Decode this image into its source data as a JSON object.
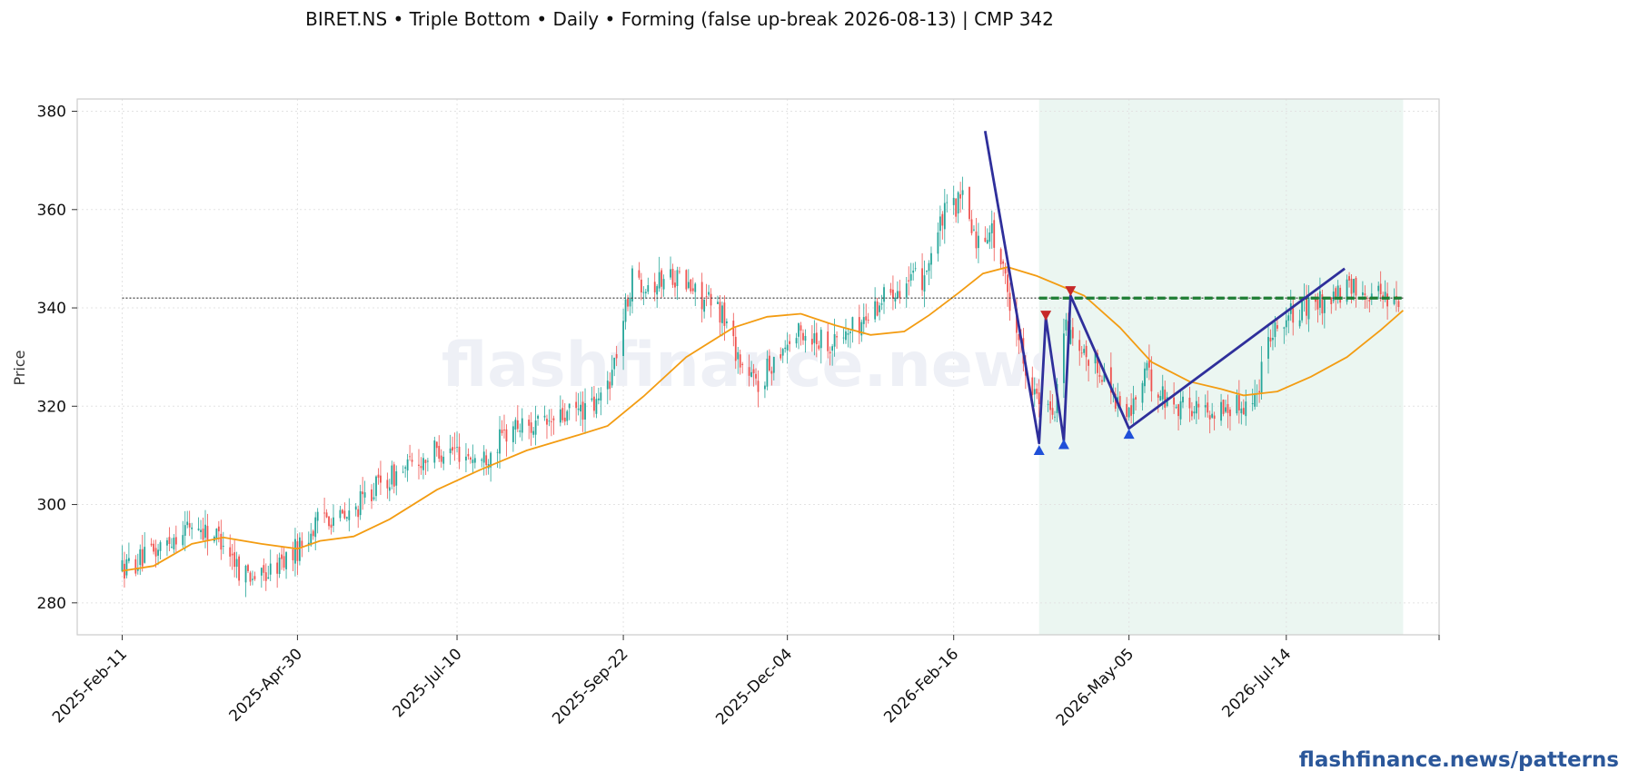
{
  "chart_data": {
    "type": "candlestick",
    "title": "BIRET.NS  •  Triple Bottom  •  Daily  •  Forming  (false up-break 2026-08-13)  |  CMP 342",
    "xlabel": "",
    "ylabel": "Price",
    "watermark": "flashfinance.news",
    "footer": "flashfinance.news/patterns",
    "x_range": [
      "2025-01-22",
      "2026-09-20"
    ],
    "y_range": [
      273.5,
      382.5
    ],
    "grid": true,
    "legend": "none",
    "x_ticks": [
      "2025-Feb-11",
      "2025-Apr-30",
      "2025-Jul-10",
      "2025-Sep-22",
      "2025-Dec-04",
      "2026-Feb-16",
      "2026-May-05",
      "2026-Jul-14"
    ],
    "x_tick_dates": [
      "2025-02-11",
      "2025-04-30",
      "2025-07-10",
      "2025-09-22",
      "2025-12-04",
      "2026-02-16",
      "2026-05-05",
      "2026-07-14"
    ],
    "y_ticks": [
      280,
      300,
      320,
      340,
      360,
      380
    ],
    "price_anchors": [
      [
        "2025-02-11",
        287
      ],
      [
        "2025-02-25",
        290
      ],
      [
        "2025-03-07",
        294
      ],
      [
        "2025-03-14",
        296
      ],
      [
        "2025-03-28",
        293
      ],
      [
        "2025-04-04",
        287
      ],
      [
        "2025-04-14",
        285
      ],
      [
        "2025-04-30",
        291
      ],
      [
        "2025-05-12",
        298
      ],
      [
        "2025-05-22",
        297
      ],
      [
        "2025-06-02",
        303
      ],
      [
        "2025-06-16",
        307
      ],
      [
        "2025-07-01",
        311
      ],
      [
        "2025-07-10",
        311
      ],
      [
        "2025-07-21",
        309
      ],
      [
        "2025-08-04",
        316
      ],
      [
        "2025-08-18",
        316
      ],
      [
        "2025-09-01",
        319
      ],
      [
        "2025-09-10",
        320
      ],
      [
        "2025-09-17",
        327
      ],
      [
        "2025-09-26",
        346
      ],
      [
        "2025-10-06",
        345
      ],
      [
        "2025-10-14",
        347
      ],
      [
        "2025-10-24",
        343
      ],
      [
        "2025-11-05",
        339
      ],
      [
        "2025-11-14",
        328
      ],
      [
        "2025-11-21",
        324
      ],
      [
        "2025-12-01",
        332
      ],
      [
        "2025-12-10",
        335
      ],
      [
        "2025-12-24",
        333
      ],
      [
        "2026-01-06",
        337
      ],
      [
        "2026-01-19",
        344
      ],
      [
        "2026-02-02",
        346
      ],
      [
        "2026-02-12",
        359
      ],
      [
        "2026-02-20",
        362
      ],
      [
        "2026-02-27",
        353
      ],
      [
        "2026-03-04",
        357
      ],
      [
        "2026-03-09",
        349
      ],
      [
        "2026-03-17",
        334
      ],
      [
        "2026-03-22",
        325
      ],
      [
        "2026-03-28",
        318
      ],
      [
        "2026-04-02",
        320
      ],
      [
        "2026-04-06",
        337
      ],
      [
        "2026-04-12",
        330
      ],
      [
        "2026-04-22",
        328
      ],
      [
        "2026-05-01",
        320
      ],
      [
        "2026-05-05",
        318
      ],
      [
        "2026-05-12",
        327
      ],
      [
        "2026-05-22",
        321
      ],
      [
        "2026-06-08",
        319
      ],
      [
        "2026-06-22",
        320
      ],
      [
        "2026-07-01",
        322
      ],
      [
        "2026-07-05",
        335
      ],
      [
        "2026-07-14",
        338
      ],
      [
        "2026-07-28",
        341
      ],
      [
        "2026-08-13",
        344
      ],
      [
        "2026-08-24",
        343
      ],
      [
        "2026-09-02",
        342
      ]
    ],
    "moving_average": [
      [
        "2025-02-11",
        286.5
      ],
      [
        "2025-02-25",
        287.5
      ],
      [
        "2025-03-14",
        292
      ],
      [
        "2025-03-28",
        293.3
      ],
      [
        "2025-04-14",
        292
      ],
      [
        "2025-04-30",
        291
      ],
      [
        "2025-05-10",
        292.6
      ],
      [
        "2025-05-25",
        293.5
      ],
      [
        "2025-06-10",
        297
      ],
      [
        "2025-07-01",
        303
      ],
      [
        "2025-07-20",
        307
      ],
      [
        "2025-08-10",
        311
      ],
      [
        "2025-09-01",
        314
      ],
      [
        "2025-09-15",
        316
      ],
      [
        "2025-10-01",
        322
      ],
      [
        "2025-10-20",
        330
      ],
      [
        "2025-11-10",
        336
      ],
      [
        "2025-11-25",
        338.2
      ],
      [
        "2025-12-10",
        338.8
      ],
      [
        "2025-12-25",
        336.5
      ],
      [
        "2026-01-10",
        334.5
      ],
      [
        "2026-01-25",
        335.2
      ],
      [
        "2026-02-05",
        338.5
      ],
      [
        "2026-02-18",
        343
      ],
      [
        "2026-03-01",
        347
      ],
      [
        "2026-03-12",
        348.3
      ],
      [
        "2026-03-25",
        346.5
      ],
      [
        "2026-04-15",
        342.5
      ],
      [
        "2026-05-01",
        336
      ],
      [
        "2026-05-15",
        329
      ],
      [
        "2026-06-01",
        325
      ],
      [
        "2026-06-15",
        323.5
      ],
      [
        "2026-06-25",
        322.2
      ],
      [
        "2026-07-10",
        323
      ],
      [
        "2026-07-25",
        326
      ],
      [
        "2026-08-10",
        330
      ],
      [
        "2026-08-25",
        335.5
      ],
      [
        "2026-09-04",
        339.5
      ]
    ],
    "cmp_line": {
      "value": 342,
      "from": "2025-02-11",
      "to": "2026-09-04"
    },
    "neckline": {
      "value": 342,
      "from": "2026-03-26",
      "to": "2026-09-04"
    },
    "pattern_zone": {
      "from": "2026-03-26",
      "to": "2026-09-04"
    },
    "pattern_path": [
      [
        "2026-03-02",
        376
      ],
      [
        "2026-03-26",
        312.5
      ],
      [
        "2026-03-29",
        338
      ],
      [
        "2026-04-06",
        313
      ],
      [
        "2026-04-09",
        342.5
      ],
      [
        "2026-05-05",
        315.5
      ],
      [
        "2026-08-09",
        348
      ]
    ],
    "troughs": [
      [
        "2026-03-26",
        311
      ],
      [
        "2026-04-06",
        312.2
      ],
      [
        "2026-05-05",
        314.3
      ]
    ],
    "peaks": [
      [
        "2026-03-29",
        338.5
      ],
      [
        "2026-04-09",
        343.5
      ]
    ],
    "colors": {
      "up_candle": "#26a69a",
      "down_candle": "#ef5350",
      "moving_average": "#f39c12",
      "pattern_line": "#2f2f9b",
      "neckline": "#1e7e34",
      "zone_fill": "#e8f5ee",
      "trough_marker": "#1f4fd8",
      "peak_marker": "#c62828",
      "watermark": "#eef0f6",
      "footer": "#2b579a"
    }
  }
}
